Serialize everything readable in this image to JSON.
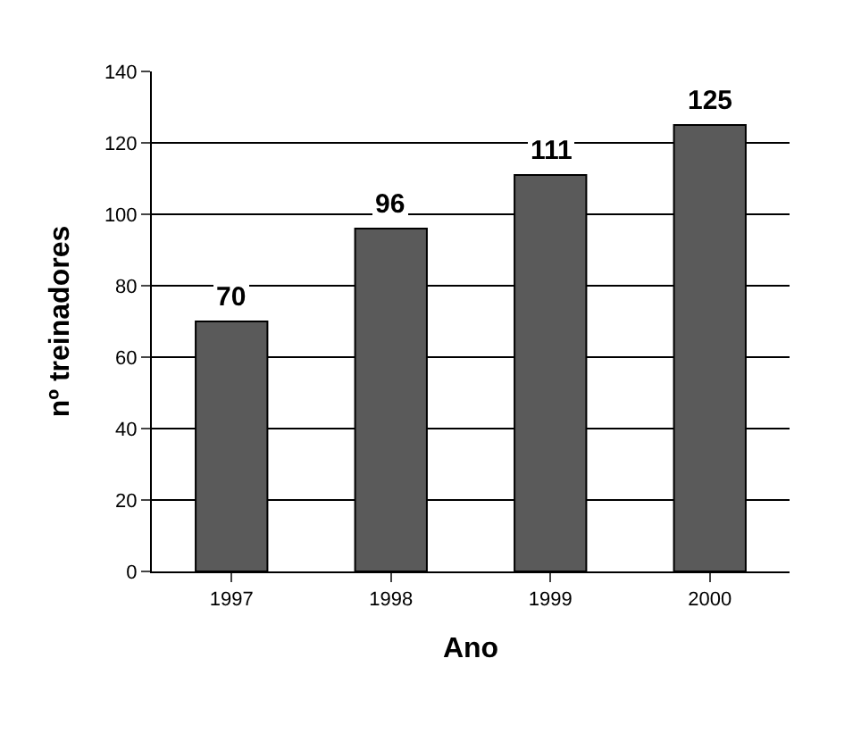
{
  "chart_data": {
    "type": "bar",
    "xlabel": "Ano",
    "ylabel": "nº treinadores",
    "categories": [
      "1997",
      "1998",
      "1999",
      "2000"
    ],
    "values": [
      70,
      96,
      111,
      125
    ],
    "color": "#5a5a5a",
    "ylim": [
      0,
      140
    ],
    "yticks": [
      0,
      20,
      40,
      60,
      80,
      100,
      120,
      140
    ],
    "grid": "y",
    "data_labels": true
  }
}
